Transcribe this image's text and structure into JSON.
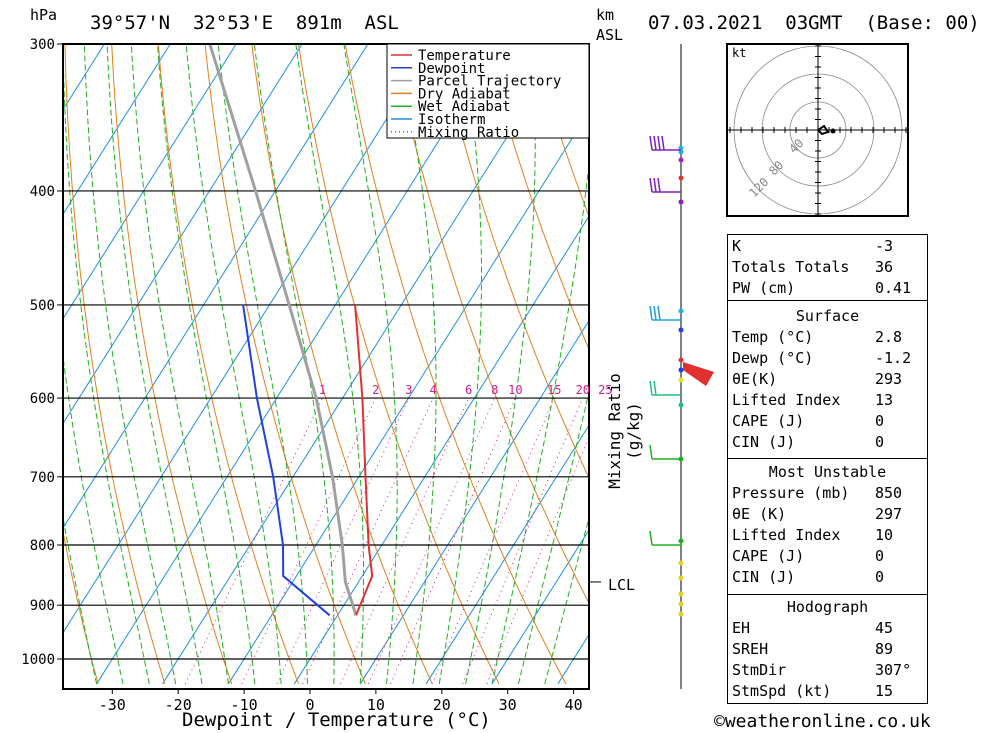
{
  "header": {
    "pressure_unit": "hPa",
    "location": "39°57'N  32°53'E  891m  ASL",
    "height_unit_line1": "km",
    "height_unit_line2": "ASL",
    "datetime": "07.03.2021  03GMT  (Base: 00)"
  },
  "footer": {
    "copyright": "©weatheronline.co.uk"
  },
  "chart_data": {
    "type": "skew-t log-p",
    "xlabel": "Dewpoint / Temperature (°C)",
    "mixing_ratio_axis_label": "Mixing Ratio (g/kg)",
    "pressure_ticks": [
      300,
      400,
      500,
      600,
      700,
      800,
      900,
      1000
    ],
    "temperature_ticks": [
      -30,
      -20,
      -10,
      0,
      10,
      20,
      30,
      40
    ],
    "mixing_ratio_labels": [
      1,
      2,
      3,
      4,
      6,
      8,
      10,
      15,
      20,
      25
    ],
    "lcl_label": "LCL",
    "lcl_pressure": 860,
    "legend": [
      {
        "name": "Temperature",
        "color": "#e03030",
        "style": "solid"
      },
      {
        "name": "Dewpoint",
        "color": "#2040e0",
        "style": "solid"
      },
      {
        "name": "Parcel Trajectory",
        "color": "#a0a0a0",
        "style": "solid"
      },
      {
        "name": "Dry Adiabat",
        "color": "#e08020",
        "style": "solid"
      },
      {
        "name": "Wet Adiabat",
        "color": "#20b020",
        "style": "solid"
      },
      {
        "name": "Isotherm",
        "color": "#2090e0",
        "style": "solid"
      },
      {
        "name": "Mixing Ratio",
        "color": "#d02090",
        "style": "dotted"
      }
    ],
    "temperature_profile": [
      {
        "p": 918,
        "t": 2.8
      },
      {
        "p": 850,
        "t": 1.5
      },
      {
        "p": 800,
        "t": -2
      },
      {
        "p": 700,
        "t": -9
      },
      {
        "p": 600,
        "t": -17
      },
      {
        "p": 500,
        "t": -27
      }
    ],
    "dewpoint_profile": [
      {
        "p": 918,
        "t": -1.2
      },
      {
        "p": 850,
        "t": -12
      },
      {
        "p": 800,
        "t": -15
      },
      {
        "p": 700,
        "t": -23
      },
      {
        "p": 600,
        "t": -33
      },
      {
        "p": 500,
        "t": -44
      }
    ],
    "parcel_profile": [
      {
        "p": 918,
        "t": 2.8
      },
      {
        "p": 860,
        "t": -2
      },
      {
        "p": 800,
        "t": -6
      },
      {
        "p": 700,
        "t": -14
      },
      {
        "p": 600,
        "t": -24
      },
      {
        "p": 500,
        "t": -37
      },
      {
        "p": 400,
        "t": -53
      },
      {
        "p": 300,
        "t": -74
      }
    ],
    "grid": true
  },
  "hodograph": {
    "unit": "kt",
    "ring_labels": [
      "40",
      "80",
      "120"
    ]
  },
  "indices": {
    "basic": [
      {
        "label": "K",
        "value": "-3"
      },
      {
        "label": "Totals Totals",
        "value": "36"
      },
      {
        "label": "PW (cm)",
        "value": "0.41"
      }
    ],
    "surface_title": "Surface",
    "surface": [
      {
        "label": "Temp (°C)",
        "value": "2.8"
      },
      {
        "label": "Dewp (°C)",
        "value": "-1.2"
      },
      {
        "label": "θE(K)",
        "value": "293"
      },
      {
        "label": "Lifted Index",
        "value": "13"
      },
      {
        "label": "CAPE (J)",
        "value": "0"
      },
      {
        "label": "CIN (J)",
        "value": "0"
      }
    ],
    "unstable_title": "Most Unstable",
    "unstable": [
      {
        "label": "Pressure (mb)",
        "value": "850"
      },
      {
        "label": "θE (K)",
        "value": "297"
      },
      {
        "label": "Lifted Index",
        "value": "10"
      },
      {
        "label": "CAPE (J)",
        "value": "0"
      },
      {
        "label": "CIN (J)",
        "value": "0"
      }
    ],
    "hodograph_title": "Hodograph",
    "hodograph": [
      {
        "label": "EH",
        "value": "45"
      },
      {
        "label": "SREH",
        "value": "89"
      },
      {
        "label": "StmDir",
        "value": "307°"
      },
      {
        "label": "StmSpd (kt)",
        "value": "15"
      }
    ]
  },
  "colors": {
    "temperature": "#e03030",
    "dewpoint": "#2040e0",
    "parcel": "#a0a0a0",
    "dry_adiabat": "#e08020",
    "wet_adiabat": "#20b020",
    "isotherm": "#2090e0",
    "mixing_ratio": "#d02090"
  }
}
